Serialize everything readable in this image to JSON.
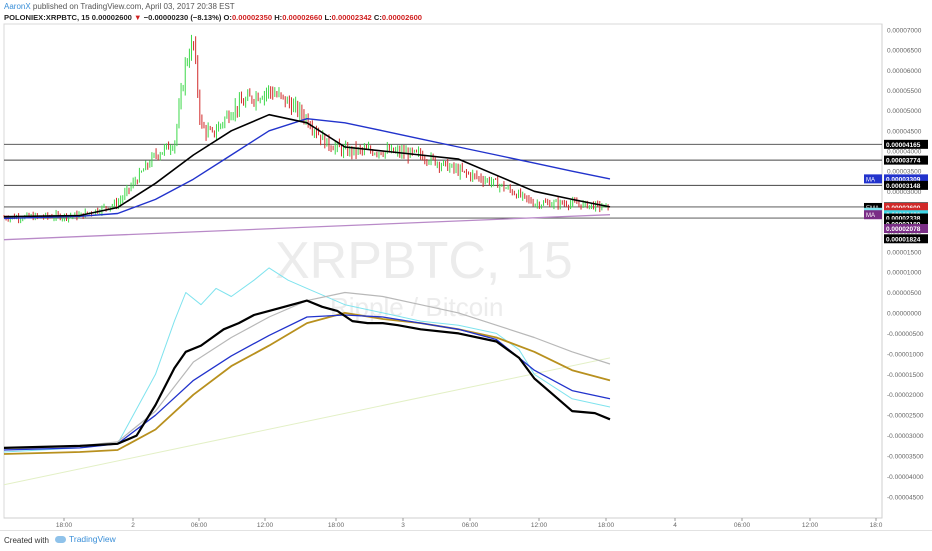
{
  "header": {
    "author": "AaronX",
    "published": "published on TradingView.com, April 03, 2017 20:38 EST"
  },
  "ohlc": {
    "symbol": "POLONIEX:XRPBTC, 15",
    "last": "0.00002600",
    "change_arrow": "▼",
    "change": "−0.00000230 (−8.13%)",
    "open_label": "O:",
    "open": "0.00002350",
    "high_label": "H:",
    "high": "0.00002660",
    "low_label": "L:",
    "low": "0.00002342",
    "close_label": "C:",
    "close": "0.00002600"
  },
  "watermark": {
    "symbol": "XRPBTC, 15",
    "name": "Ripple / Bitcoin"
  },
  "footer": {
    "made_with": "Created with",
    "brand": "TradingView"
  },
  "colors": {
    "candle_up": "#3dd84a",
    "candle_down": "#d12a2a",
    "ma_blue": "#2233cc",
    "ma_purple": "#b98ac8",
    "ema_black": "#000000",
    "gold": "#b8901e",
    "cyan": "#7fe3ee",
    "grey": "#b8b8b8"
  },
  "chart_data": {
    "type": "line",
    "upper_axis_ticks": [
      "0.00007000",
      "0.00006500",
      "0.00006000",
      "0.00005500",
      "0.00005000",
      "0.00004500",
      "0.00004000",
      "0.00003500",
      "0.00003000",
      "0.00002500",
      "0.00002000",
      "0.00001500",
      "0.00001000"
    ],
    "lower_axis_ticks": [
      "0.00000500",
      "0.00000000",
      "-0.00000500",
      "-0.00001000",
      "-0.00001500",
      "-0.00002000",
      "-0.00002500",
      "-0.00003000",
      "-0.00003500",
      "-0.00004000",
      "-0.00004500"
    ],
    "upper_ylim": [
      1e-05,
      7e-05
    ],
    "lower_ylim": [
      -4.5e-05,
      1e-05
    ],
    "horizontal_levels": [
      4.165e-05,
      3.774e-05,
      3.148e-05,
      2.338e-05,
      2.614e-05
    ],
    "price_labels": [
      {
        "text": "0.00004165",
        "value": 4.165e-05,
        "bg": "#000000",
        "fg": "#ffffff"
      },
      {
        "text": "0.00003774",
        "value": 3.774e-05,
        "bg": "#000000",
        "fg": "#ffffff"
      },
      {
        "text": "0.00003309",
        "value": 3.309e-05,
        "bg": "#2233cc",
        "fg": "#ffffff",
        "tag": "MA",
        "tag_bg": "#2233cc"
      },
      {
        "text": "0.00003148",
        "value": 3.148e-05,
        "bg": "#000000",
        "fg": "#ffffff"
      },
      {
        "text": "0.00002614",
        "value": 2.614e-05,
        "bg": "#000000",
        "fg": "#ffffff"
      },
      {
        "text": "0.00002600",
        "value": 2.6e-05,
        "bg": "#d12a2a",
        "fg": "#ffffff",
        "tag": "EMA",
        "tag_bg": "#000000"
      },
      {
        "text": "06:28",
        "value": 2.48e-05,
        "bg": "#d12a2a",
        "fg": "#ffffff",
        "tag": "EMA",
        "tag_bg": "#7fe3ee"
      },
      {
        "text": "0.00002420",
        "value": 2.42e-05,
        "bg": "#3fd6e6",
        "fg": "#ffffff",
        "tag": "MA",
        "tag_bg": "#7a2e86"
      },
      {
        "text": "0.00002338",
        "value": 2.338e-05,
        "bg": "#000000",
        "fg": "#ffffff"
      },
      {
        "text": "0.00002189",
        "value": 2.189e-05,
        "bg": "#000000",
        "fg": "#ffffff"
      },
      {
        "text": "0.00002078",
        "value": 2.078e-05,
        "bg": "#7a2e86",
        "fg": "#ffffff"
      },
      {
        "text": "0.00001824",
        "value": 1.824e-05,
        "bg": "#000000",
        "fg": "#ffffff"
      }
    ],
    "x_ticks": [
      "18:00",
      "2",
      "06:00",
      "12:00",
      "18:00",
      "3",
      "06:00",
      "12:00",
      "18:00",
      "4",
      "06:00",
      "12:00",
      "18:0"
    ],
    "price_series": {
      "name": "",
      "x": [
        0,
        10,
        20,
        30,
        35,
        40,
        45,
        48,
        50,
        52,
        55,
        60,
        65,
        70,
        75,
        80,
        85,
        90,
        95,
        100,
        110,
        115,
        120,
        130,
        140,
        150,
        160
      ],
      "y": [
        2.36e-05,
        2.37e-05,
        2.4e-05,
        2.7e-05,
        3.3e-05,
        3.9e-05,
        4.2e-05,
        6.2e-05,
        6.7e-05,
        4.6e-05,
        4.4e-05,
        5e-05,
        5.3e-05,
        5.5e-05,
        5.2e-05,
        4.8e-05,
        4.2e-05,
        4e-05,
        4e-05,
        4e-05,
        3.9e-05,
        3.7e-05,
        3.5e-05,
        3.2e-05,
        2.7e-05,
        2.7e-05,
        2.6e-05
      ]
    },
    "ema_series": {
      "x": [
        0,
        20,
        30,
        40,
        50,
        60,
        70,
        80,
        90,
        100,
        110,
        120,
        130,
        140,
        150,
        160
      ],
      "y": [
        2.37e-05,
        2.4e-05,
        2.6e-05,
        3.2e-05,
        3.9e-05,
        4.5e-05,
        4.9e-05,
        4.7e-05,
        4.1e-05,
        4e-05,
        3.9e-05,
        3.8e-05,
        3.4e-05,
        3e-05,
        2.8e-05,
        2.614e-05
      ]
    },
    "ma_blue_series": {
      "x": [
        0,
        20,
        30,
        40,
        50,
        60,
        70,
        80,
        90,
        100,
        110,
        120,
        130,
        140,
        150,
        160
      ],
      "y": [
        2.33e-05,
        2.38e-05,
        2.45e-05,
        2.8e-05,
        3.3e-05,
        3.9e-05,
        4.5e-05,
        4.8e-05,
        4.7e-05,
        4.5e-05,
        4.3e-05,
        4.1e-05,
        3.9e-05,
        3.7e-05,
        3.5e-05,
        3.309e-05
      ]
    },
    "ma_purple_series": {
      "x": [
        0,
        160
      ],
      "y": [
        1.8e-05,
        2.42e-05
      ]
    },
    "osc_black": {
      "x": [
        0,
        20,
        30,
        35,
        40,
        45,
        48,
        52,
        55,
        58,
        62,
        66,
        70,
        74,
        78,
        80,
        84,
        88,
        92,
        96,
        100,
        104,
        110,
        120,
        130,
        136,
        140,
        145,
        150,
        156,
        160
      ],
      "y": [
        -3.3e-05,
        -3.25e-05,
        -3.2e-05,
        -3e-05,
        -2.25e-05,
        -1.35e-05,
        -9.5e-06,
        -8e-06,
        -6e-06,
        -4e-06,
        -2.5e-06,
        -5e-07,
        5e-07,
        1.5e-06,
        2.5e-06,
        3e-06,
        1.5e-06,
        5e-07,
        -2e-06,
        -2.5e-06,
        -2.5e-06,
        -3e-06,
        -4e-06,
        -5e-06,
        -7e-06,
        -1.1e-05,
        -1.6e-05,
        -2e-05,
        -2.4e-05,
        -2.45e-05,
        -2.6e-05
      ]
    },
    "osc_navy": {
      "x": [
        0,
        20,
        30,
        40,
        50,
        60,
        70,
        80,
        90,
        100,
        110,
        120,
        130,
        140,
        150,
        160
      ],
      "y": [
        -3.35e-05,
        -3.3e-05,
        -3.2e-05,
        -2.5e-05,
        -1.65e-05,
        -1.05e-05,
        -5.5e-06,
        -1e-06,
        -5e-07,
        -1e-06,
        -2.5e-06,
        -4e-06,
        -6.5e-06,
        -1.4e-05,
        -1.9e-05,
        -2.1e-05
      ]
    },
    "osc_gold": {
      "x": [
        0,
        20,
        30,
        40,
        50,
        60,
        70,
        80,
        90,
        100,
        110,
        120,
        130,
        140,
        150,
        160
      ],
      "y": [
        -3.45e-05,
        -3.4e-05,
        -3.35e-05,
        -2.85e-05,
        -2e-05,
        -1.3e-05,
        -8e-06,
        -2.5e-06,
        0.0,
        -1.5e-06,
        -2.5e-06,
        -4e-06,
        -6e-06,
        -9.5e-06,
        -1.4e-05,
        -1.65e-05
      ]
    },
    "osc_grey": {
      "x": [
        0,
        20,
        30,
        40,
        50,
        60,
        70,
        80,
        90,
        100,
        110,
        120,
        130,
        140,
        150,
        160
      ],
      "y": [
        -3.35e-05,
        -3.25e-05,
        -3.15e-05,
        -2.4e-05,
        -1.2e-05,
        -6e-06,
        -1e-06,
        3e-06,
        5e-06,
        4e-06,
        2e-06,
        0.0,
        -3e-06,
        -6e-06,
        -9.5e-06,
        -1.25e-05
      ]
    },
    "osc_cyan": {
      "x": [
        0,
        20,
        30,
        40,
        45,
        48,
        52,
        56,
        60,
        66,
        70,
        75,
        80,
        90,
        100,
        110,
        120,
        130,
        136,
        140,
        150,
        160
      ],
      "y": [
        -3.4e-05,
        -3.3e-05,
        -3.2e-05,
        -1.5e-05,
        -2e-06,
        5e-06,
        2e-06,
        6e-06,
        4e-06,
        8e-06,
        1.1e-05,
        8e-06,
        6e-06,
        2e-06,
        0.0,
        -2e-06,
        -3e-06,
        -5e-06,
        -9e-06,
        -1.5e-05,
        -2.1e-05,
        -2.3e-05
      ]
    },
    "osc_green": {
      "x": [
        0,
        160
      ],
      "y": [
        -4.2e-05,
        -1.1e-05
      ]
    },
    "grid": false,
    "legend": "none"
  }
}
